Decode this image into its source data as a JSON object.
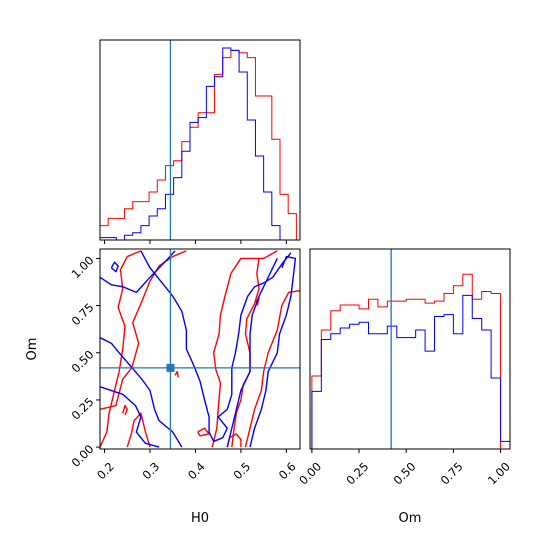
{
  "chart_data": {
    "type": "corner",
    "truth": {
      "H0": 0.345,
      "Om": 0.42
    },
    "colors": {
      "red": "#ff0000",
      "blue": "#0000ff",
      "truth": "#1f77b4"
    },
    "axes": {
      "H0": {
        "label": "H0",
        "lim": [
          0.19,
          0.63
        ],
        "ticks": [
          0.2,
          0.3,
          0.4,
          0.5,
          0.6
        ],
        "tick_labels": [
          "0.2",
          "0.3",
          "0.4",
          "0.5",
          "0.6"
        ]
      },
      "Om": {
        "label": "Om",
        "lim": [
          -0.01,
          1.05
        ],
        "ticks": [
          0.0,
          0.25,
          0.5,
          0.75,
          1.0
        ],
        "tick_labels": [
          "0.00",
          "0.25",
          "0.50",
          "0.75",
          "1.00"
        ]
      }
    },
    "hist_H0": {
      "xlabel": "",
      "ylabel": "",
      "series": [
        {
          "color": "red",
          "edges": [
            0.19,
            0.208,
            0.226,
            0.244,
            0.262,
            0.28,
            0.298,
            0.316,
            0.334,
            0.352,
            0.37,
            0.388,
            0.406,
            0.424,
            0.442,
            0.46,
            0.478,
            0.496,
            0.514,
            0.532,
            0.55,
            0.568,
            0.586,
            0.604,
            0.622
          ],
          "counts": [
            0.06,
            0.09,
            0.09,
            0.13,
            0.16,
            0.16,
            0.2,
            0.25,
            0.31,
            0.33,
            0.41,
            0.47,
            0.53,
            0.53,
            0.69,
            0.76,
            0.79,
            0.78,
            0.76,
            0.6,
            0.6,
            0.42,
            0.19,
            0.11
          ]
        },
        {
          "color": "blue",
          "edges": [
            0.19,
            0.208,
            0.226,
            0.244,
            0.262,
            0.28,
            0.298,
            0.316,
            0.334,
            0.352,
            0.37,
            0.388,
            0.406,
            0.424,
            0.442,
            0.46,
            0.478,
            0.496,
            0.514,
            0.532,
            0.55,
            0.568,
            0.586,
            0.604,
            0.622
          ],
          "counts": [
            0.01,
            0.01,
            0.0,
            0.02,
            0.03,
            0.06,
            0.1,
            0.13,
            0.19,
            0.26,
            0.37,
            0.49,
            0.51,
            0.64,
            0.68,
            0.8,
            0.79,
            0.7,
            0.5,
            0.35,
            0.2,
            0.06,
            0.0,
            0.0
          ]
        }
      ]
    },
    "hist_Om": {
      "xlabel": "",
      "ylabel": "",
      "series": [
        {
          "color": "red",
          "edges": [
            0,
            0.05,
            0.1,
            0.15,
            0.2,
            0.25,
            0.3,
            0.35,
            0.4,
            0.45,
            0.5,
            0.55,
            0.6,
            0.65,
            0.7,
            0.75,
            0.8,
            0.85,
            0.9,
            0.95,
            1.0
          ],
          "counts": [
            0.38,
            0.62,
            0.72,
            0.75,
            0.75,
            0.73,
            0.78,
            0.74,
            0.77,
            0.77,
            0.78,
            0.78,
            0.76,
            0.77,
            0.81,
            0.85,
            0.91,
            0.78,
            0.82,
            0.81
          ]
        },
        {
          "color": "blue",
          "edges": [
            0,
            0.05,
            0.1,
            0.15,
            0.2,
            0.25,
            0.3,
            0.35,
            0.4,
            0.45,
            0.5,
            0.55,
            0.6,
            0.65,
            0.7,
            0.75,
            0.8,
            0.85,
            0.9,
            0.95,
            1.0,
            1.05
          ],
          "counts": [
            0.3,
            0.57,
            0.6,
            0.63,
            0.65,
            0.66,
            0.6,
            0.6,
            0.64,
            0.58,
            0.58,
            0.62,
            0.51,
            0.69,
            0.7,
            0.6,
            0.8,
            0.68,
            0.62,
            0.37,
            0.04
          ]
        }
      ]
    },
    "contours_2d": {
      "xlabel": "H0",
      "ylabel": "Om",
      "truth_marker": "square",
      "red": [
        [
          [
            0.19,
            0.0
          ],
          [
            0.205,
            0.08
          ],
          [
            0.21,
            0.18
          ],
          [
            0.222,
            0.3
          ],
          [
            0.232,
            0.4
          ],
          [
            0.24,
            0.52
          ],
          [
            0.245,
            0.64
          ],
          [
            0.23,
            0.74
          ],
          [
            0.24,
            0.84
          ],
          [
            0.235,
            0.94
          ],
          [
            0.25,
            1.01
          ],
          [
            0.28,
            1.04
          ]
        ],
        [
          [
            0.19,
            0.2
          ],
          [
            0.225,
            0.22
          ],
          [
            0.24,
            0.36
          ],
          [
            0.26,
            0.42
          ],
          [
            0.275,
            0.55
          ],
          [
            0.262,
            0.66
          ],
          [
            0.28,
            0.76
          ],
          [
            0.3,
            0.88
          ],
          [
            0.32,
            0.96
          ],
          [
            0.35,
            1.01
          ],
          [
            0.38,
            1.04
          ]
        ],
        [
          [
            0.25,
            0.0
          ],
          [
            0.26,
            0.08
          ],
          [
            0.265,
            0.14
          ],
          [
            0.28,
            0.18
          ],
          [
            0.29,
            0.08
          ],
          [
            0.3,
            0.0
          ]
        ],
        [
          [
            0.405,
            0.08
          ],
          [
            0.42,
            0.1
          ],
          [
            0.43,
            0.07
          ],
          [
            0.41,
            0.06
          ],
          [
            0.405,
            0.08
          ]
        ],
        [
          [
            0.437,
            0.0
          ],
          [
            0.447,
            0.1
          ],
          [
            0.45,
            0.2
          ],
          [
            0.455,
            0.34
          ],
          [
            0.445,
            0.41
          ],
          [
            0.44,
            0.5
          ],
          [
            0.452,
            0.6
          ],
          [
            0.455,
            0.7
          ],
          [
            0.465,
            0.8
          ],
          [
            0.478,
            0.92
          ],
          [
            0.5,
            1.0
          ],
          [
            0.55,
            1.0
          ],
          [
            0.58,
            1.04
          ]
        ],
        [
          [
            0.48,
            0.0
          ],
          [
            0.485,
            0.1
          ],
          [
            0.49,
            0.18
          ],
          [
            0.5,
            0.25
          ],
          [
            0.505,
            0.33
          ],
          [
            0.52,
            0.4
          ],
          [
            0.52,
            0.5
          ],
          [
            0.51,
            0.6
          ],
          [
            0.513,
            0.68
          ],
          [
            0.53,
            0.76
          ],
          [
            0.54,
            0.84
          ],
          [
            0.535,
            0.92
          ],
          [
            0.54,
            1.0
          ]
        ],
        [
          [
            0.51,
            0.0
          ],
          [
            0.52,
            0.1
          ],
          [
            0.53,
            0.2
          ],
          [
            0.545,
            0.3
          ],
          [
            0.55,
            0.4
          ],
          [
            0.56,
            0.5
          ],
          [
            0.58,
            0.62
          ],
          [
            0.59,
            0.75
          ],
          [
            0.605,
            0.82
          ],
          [
            0.63,
            0.83
          ]
        ],
        [
          [
            0.47,
            0.0
          ],
          [
            0.475,
            0.05
          ],
          [
            0.49,
            0.07
          ],
          [
            0.5,
            0.04
          ],
          [
            0.5,
            0.0
          ]
        ],
        [
          [
            0.24,
            0.18
          ],
          [
            0.245,
            0.22
          ],
          [
            0.25,
            0.2
          ],
          [
            0.245,
            0.17
          ]
        ],
        [
          [
            0.355,
            0.38
          ],
          [
            0.36,
            0.4
          ],
          [
            0.362,
            0.37
          ]
        ],
        [
          [
            0.532,
            0.77
          ],
          [
            0.54,
            0.79
          ],
          [
            0.536,
            0.75
          ]
        ]
      ],
      "blue": [
        [
          [
            0.19,
            0.32
          ],
          [
            0.24,
            0.28
          ],
          [
            0.268,
            0.22
          ],
          [
            0.28,
            0.16
          ],
          [
            0.27,
            0.08
          ],
          [
            0.29,
            0.02
          ],
          [
            0.32,
            0.0
          ]
        ],
        [
          [
            0.19,
            0.58
          ],
          [
            0.215,
            0.55
          ],
          [
            0.232,
            0.5
          ],
          [
            0.25,
            0.45
          ],
          [
            0.282,
            0.36
          ],
          [
            0.3,
            0.3
          ],
          [
            0.31,
            0.2
          ],
          [
            0.32,
            0.14
          ],
          [
            0.35,
            0.08
          ],
          [
            0.37,
            0.0
          ]
        ],
        [
          [
            0.19,
            0.9
          ],
          [
            0.215,
            0.86
          ],
          [
            0.24,
            0.85
          ],
          [
            0.27,
            0.82
          ],
          [
            0.3,
            0.9
          ],
          [
            0.32,
            0.95
          ],
          [
            0.34,
            1.0
          ],
          [
            0.355,
            1.04
          ]
        ],
        [
          [
            0.28,
            1.04
          ],
          [
            0.3,
            0.95
          ],
          [
            0.33,
            0.86
          ],
          [
            0.35,
            0.8
          ],
          [
            0.37,
            0.72
          ],
          [
            0.38,
            0.62
          ],
          [
            0.38,
            0.52
          ],
          [
            0.395,
            0.44
          ],
          [
            0.41,
            0.35
          ],
          [
            0.42,
            0.25
          ],
          [
            0.43,
            0.16
          ],
          [
            0.43,
            0.08
          ],
          [
            0.44,
            0.03
          ],
          [
            0.46,
            0.05
          ],
          [
            0.47,
            0.1
          ],
          [
            0.45,
            0.16
          ],
          [
            0.47,
            0.2
          ],
          [
            0.48,
            0.28
          ],
          [
            0.48,
            0.35
          ],
          [
            0.48,
            0.42
          ],
          [
            0.488,
            0.5
          ],
          [
            0.495,
            0.6
          ],
          [
            0.5,
            0.7
          ],
          [
            0.515,
            0.8
          ],
          [
            0.53,
            0.85
          ],
          [
            0.55,
            0.87
          ],
          [
            0.57,
            0.9
          ],
          [
            0.59,
            0.97
          ],
          [
            0.61,
            1.03
          ]
        ],
        [
          [
            0.47,
            0.0
          ],
          [
            0.48,
            0.1
          ],
          [
            0.49,
            0.2
          ],
          [
            0.5,
            0.3
          ],
          [
            0.52,
            0.4
          ],
          [
            0.52,
            0.5
          ],
          [
            0.52,
            0.6
          ],
          [
            0.525,
            0.7
          ],
          [
            0.54,
            0.8
          ],
          [
            0.56,
            0.9
          ],
          [
            0.58,
            1.0
          ]
        ],
        [
          [
            0.52,
            0.0
          ],
          [
            0.53,
            0.1
          ],
          [
            0.545,
            0.2
          ],
          [
            0.555,
            0.3
          ],
          [
            0.56,
            0.4
          ],
          [
            0.58,
            0.5
          ],
          [
            0.585,
            0.6
          ],
          [
            0.6,
            0.7
          ],
          [
            0.61,
            0.8
          ],
          [
            0.615,
            0.9
          ],
          [
            0.62,
            1.0
          ],
          [
            0.6,
            1.01
          ],
          [
            0.59,
            0.95
          ]
        ],
        [
          [
            0.215,
            0.95
          ],
          [
            0.222,
            0.98
          ],
          [
            0.23,
            0.96
          ],
          [
            0.225,
            0.93
          ],
          [
            0.215,
            0.95
          ]
        ]
      ]
    }
  }
}
